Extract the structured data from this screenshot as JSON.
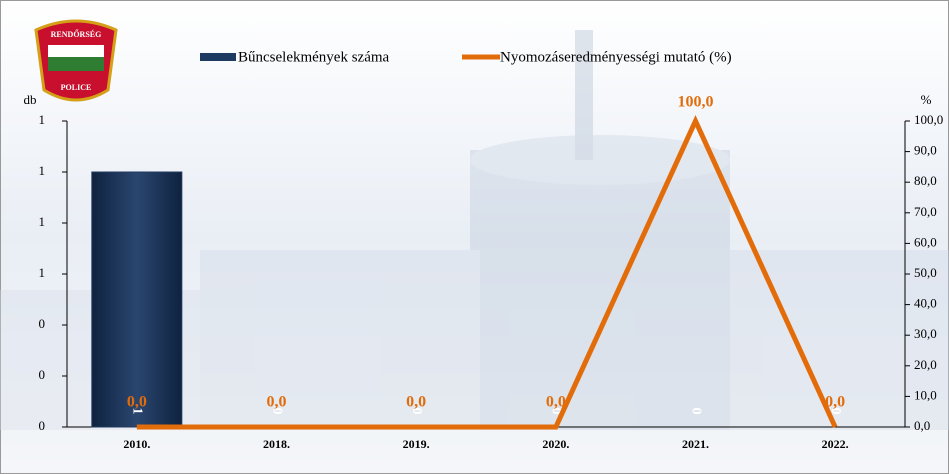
{
  "logo": {
    "top": "RENDŐRSÉG",
    "bottom": "POLICE"
  },
  "chart_data": {
    "type": "bar-line",
    "y_label": "db",
    "y2_label": "%",
    "categories": [
      "2010.",
      "2018.",
      "2019.",
      "2020.",
      "2021.",
      "2022."
    ],
    "series": [
      {
        "name": "Bűncselekmények száma",
        "color": "#1f3a60",
        "type": "bar",
        "values": [
          1,
          0,
          0,
          0,
          0,
          0
        ]
      },
      {
        "name": "Nyomozáseredményességi mutató (%)",
        "color": "#e36c0a",
        "type": "line",
        "axis": "y2",
        "values": [
          0,
          0,
          0,
          0,
          100,
          0
        ],
        "value_labels": [
          "0,0",
          "0,0",
          "0,0",
          "0,0",
          "100,0",
          "0,0"
        ]
      }
    ],
    "ylim": [
      0,
      1.2
    ],
    "yticks": [
      0,
      {
        "value": 0.2,
        "label": "0"
      },
      {
        "value": 0.4,
        "label": "0"
      },
      {
        "value": 0.6,
        "label": "1"
      },
      {
        "value": 0.8,
        "label": "1"
      },
      1,
      {
        "value": 1.2,
        "label": "1"
      }
    ],
    "y2lim": [
      0,
      100
    ],
    "y2ticks": [
      {
        "value": 0,
        "label": "0,0"
      },
      {
        "value": 10,
        "label": "10,0"
      },
      {
        "value": 20,
        "label": "20,0"
      },
      {
        "value": 30,
        "label": "30,0"
      },
      {
        "value": 40,
        "label": "40,0"
      },
      {
        "value": 50,
        "label": "50,0"
      },
      {
        "value": 60,
        "label": "60,0"
      },
      {
        "value": 70,
        "label": "70,0"
      },
      {
        "value": 80,
        "label": "80,0"
      },
      {
        "value": 90,
        "label": "90,0"
      },
      {
        "value": 100,
        "label": "100,0"
      }
    ],
    "legend": "top"
  }
}
